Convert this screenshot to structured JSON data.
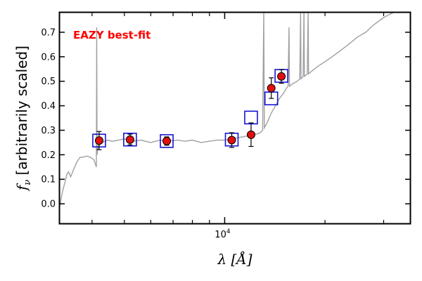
{
  "chart_data": {
    "type": "scatter",
    "xscale": "log",
    "xlim": [
      3200,
      36000
    ],
    "ylim": [
      -0.08,
      0.78
    ],
    "ylabel": "f_ν [arbitrarily scaled]",
    "ylabel_math": "f",
    "ylabel_sub": "ν",
    "ylabel_text": " [arbitrarily scaled]",
    "xlabel_math": "λ",
    "xlabel_text": " [Å]",
    "annotation": "EAZY best-fit",
    "yticks": [
      0.0,
      0.1,
      0.2,
      0.3,
      0.4,
      0.5,
      0.6,
      0.7
    ],
    "ytick_labels": [
      "0.0",
      "0.1",
      "0.2",
      "0.3",
      "0.4",
      "0.5",
      "0.6",
      "0.7"
    ],
    "xtick_major": [
      10000
    ],
    "xtick_major_labels": [
      {
        "base": "10",
        "exp": "4"
      }
    ],
    "xtick_minor": [
      4000,
      5000,
      6000,
      7000,
      8000,
      9000,
      20000,
      30000
    ],
    "colors": {
      "sed": "#a0a0a0",
      "model_box": "#1515d6",
      "observed": "#e01010",
      "annotation": "#ff0000",
      "axis": "#000000"
    },
    "series": [
      {
        "name": "best-fit SED",
        "kind": "line",
        "points": [
          [
            3200,
            -0.01
          ],
          [
            3260,
            0.05
          ],
          [
            3320,
            0.09
          ],
          [
            3360,
            0.12
          ],
          [
            3400,
            0.13
          ],
          [
            3450,
            0.11
          ],
          [
            3520,
            0.14
          ],
          [
            3600,
            0.17
          ],
          [
            3680,
            0.19
          ],
          [
            3760,
            0.19
          ],
          [
            3850,
            0.195
          ],
          [
            3950,
            0.19
          ],
          [
            4050,
            0.18
          ],
          [
            4120,
            0.15
          ],
          [
            4130,
            0.72
          ],
          [
            4140,
            0.2
          ],
          [
            4180,
            0.24
          ],
          [
            4300,
            0.25
          ],
          [
            4450,
            0.26
          ],
          [
            4600,
            0.255
          ],
          [
            4800,
            0.26
          ],
          [
            5000,
            0.265
          ],
          [
            5300,
            0.255
          ],
          [
            5600,
            0.26
          ],
          [
            6000,
            0.25
          ],
          [
            6400,
            0.26
          ],
          [
            6800,
            0.255
          ],
          [
            7200,
            0.26
          ],
          [
            7600,
            0.255
          ],
          [
            8000,
            0.26
          ],
          [
            8500,
            0.25
          ],
          [
            9000,
            0.255
          ],
          [
            9500,
            0.26
          ],
          [
            10000,
            0.26
          ],
          [
            10500,
            0.265
          ],
          [
            11000,
            0.27
          ],
          [
            11500,
            0.275
          ],
          [
            12000,
            0.28
          ],
          [
            12500,
            0.285
          ],
          [
            12800,
            0.29
          ],
          [
            13000,
            0.3
          ],
          [
            13100,
            0.78
          ],
          [
            13150,
            0.31
          ],
          [
            13400,
            0.33
          ],
          [
            13800,
            0.37
          ],
          [
            14200,
            0.4
          ],
          [
            14600,
            0.43
          ],
          [
            15000,
            0.45
          ],
          [
            15300,
            0.47
          ],
          [
            15500,
            0.48
          ],
          [
            15600,
            0.72
          ],
          [
            15650,
            0.48
          ],
          [
            16000,
            0.49
          ],
          [
            16500,
            0.5
          ],
          [
            16800,
            0.51
          ],
          [
            16900,
            0.78
          ],
          [
            16950,
            0.51
          ],
          [
            17200,
            0.52
          ],
          [
            17300,
            0.78
          ],
          [
            17350,
            0.52
          ],
          [
            17700,
            0.53
          ],
          [
            17800,
            0.78
          ],
          [
            17850,
            0.53
          ],
          [
            18200,
            0.54
          ],
          [
            19000,
            0.56
          ],
          [
            20000,
            0.58
          ],
          [
            21000,
            0.6
          ],
          [
            22000,
            0.62
          ],
          [
            23000,
            0.64
          ],
          [
            24000,
            0.66
          ],
          [
            25000,
            0.68
          ],
          [
            26500,
            0.7
          ],
          [
            28000,
            0.73
          ],
          [
            30000,
            0.76
          ],
          [
            32000,
            0.78
          ]
        ]
      },
      {
        "name": "model photometry",
        "kind": "squares",
        "x": [
          4200,
          5200,
          6700,
          10500,
          12000,
          13800,
          14800
        ],
        "y": [
          0.258,
          0.262,
          0.256,
          0.262,
          0.352,
          0.43,
          0.522
        ]
      },
      {
        "name": "observed photometry",
        "kind": "errorbar",
        "x": [
          4200,
          5200,
          6700,
          10500,
          12000,
          13800,
          14800
        ],
        "y": [
          0.258,
          0.262,
          0.256,
          0.26,
          0.282,
          0.472,
          0.52
        ],
        "yerr": [
          0.037,
          0.022,
          0.017,
          0.03,
          0.048,
          0.042,
          0.028
        ]
      }
    ]
  }
}
